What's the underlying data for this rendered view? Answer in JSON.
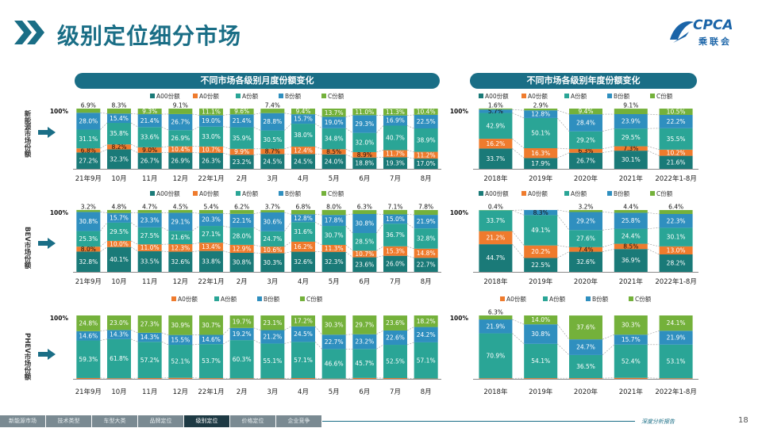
{
  "page": {
    "title": "级别定位细分市场",
    "number": "18",
    "footer_note": "深度分析报告"
  },
  "logo": {
    "text": "CPCA",
    "sub": "乘联会",
    "icon": "cpca-logo-icon"
  },
  "panels": {
    "left_title": "不同市场各级别月度份额变化",
    "right_title": "不同市场各级别年度份额变化"
  },
  "row_labels": [
    "新能源市场份额",
    "BEV市场份额",
    "PHEV市场份额"
  ],
  "nav": [
    {
      "label": "新能源市场",
      "active": false
    },
    {
      "label": "技术类型",
      "active": false
    },
    {
      "label": "车型大类",
      "active": false
    },
    {
      "label": "品牌定位",
      "active": false
    },
    {
      "label": "级别定位",
      "active": true
    },
    {
      "label": "价格定位",
      "active": false
    },
    {
      "label": "企业竞争",
      "active": false
    }
  ],
  "colors": {
    "A00": "#1a7a78",
    "A0": "#ef7b2d",
    "A": "#2aa596",
    "B": "#2f8fbf",
    "C": "#74b13b"
  },
  "chart_data": [
    {
      "type": "bar",
      "stacked": true,
      "y_axis_label": "100%",
      "legend": [
        "A00份额",
        "A0份额",
        "A份额",
        "B份额",
        "C份额"
      ],
      "categories": [
        "21年9月",
        "10月",
        "11月",
        "12月",
        "22年1月",
        "2月",
        "3月",
        "4月",
        "5月",
        "6月",
        "7月",
        "8月"
      ],
      "series": [
        {
          "name": "A00份额",
          "key": "A00",
          "values": [
            27.2,
            32.3,
            26.7,
            26.9,
            26.3,
            23.2,
            24.5,
            24.5,
            24.0,
            18.8,
            19.3,
            17.0
          ]
        },
        {
          "name": "A0份额",
          "key": "A0",
          "values": [
            6.8,
            8.2,
            9.0,
            10.4,
            10.7,
            9.9,
            8.7,
            12.4,
            8.5,
            8.9,
            11.7,
            11.2
          ]
        },
        {
          "name": "A份额",
          "key": "A",
          "values": [
            31.1,
            35.8,
            33.6,
            26.9,
            33.0,
            35.9,
            30.5,
            38.0,
            34.8,
            32.0,
            40.7,
            38.9
          ]
        },
        {
          "name": "B份额",
          "key": "B",
          "values": [
            28.0,
            15.4,
            21.4,
            26.7,
            19.0,
            21.4,
            28.8,
            15.7,
            19.0,
            29.3,
            16.9,
            22.5
          ]
        },
        {
          "name": "C份额",
          "key": "C",
          "values": [
            6.9,
            8.3,
            9.3,
            9.1,
            11.1,
            9.6,
            7.4,
            9.4,
            13.7,
            11.0,
            11.3,
            10.4
          ]
        }
      ]
    },
    {
      "type": "bar",
      "stacked": true,
      "y_axis_label": "100%",
      "legend": [
        "A00份额",
        "A0份额",
        "A份额",
        "B份额",
        "C份额"
      ],
      "categories": [
        "2018年",
        "2019年",
        "2020年",
        "2021年",
        "2022年1-8月"
      ],
      "series": [
        {
          "name": "A00份额",
          "key": "A00",
          "values": [
            33.7,
            17.9,
            26.7,
            30.1,
            21.6
          ]
        },
        {
          "name": "A0份额",
          "key": "A0",
          "values": [
            16.2,
            16.3,
            6.3,
            7.3,
            10.2
          ]
        },
        {
          "name": "A份额",
          "key": "A",
          "values": [
            42.9,
            50.1,
            29.2,
            29.5,
            35.5
          ]
        },
        {
          "name": "B份额",
          "key": "B",
          "values": [
            5.7,
            12.8,
            28.4,
            23.9,
            22.2
          ]
        },
        {
          "name": "C份额",
          "key": "C",
          "values": [
            1.6,
            2.9,
            9.4,
            9.1,
            10.5
          ]
        }
      ]
    },
    {
      "type": "bar",
      "stacked": true,
      "y_axis_label": "100%",
      "legend": [
        "A00份额",
        "A0份额",
        "A份额",
        "B份额",
        "C份额"
      ],
      "categories": [
        "21年9月",
        "10月",
        "11月",
        "12月",
        "22年1月",
        "2月",
        "3月",
        "4月",
        "5月",
        "6月",
        "7月",
        "8月"
      ],
      "series": [
        {
          "name": "A00份额",
          "key": "A00",
          "values": [
            32.8,
            40.1,
            33.5,
            32.6,
            33.8,
            30.8,
            30.3,
            32.6,
            32.3,
            23.6,
            26.0,
            22.7
          ]
        },
        {
          "name": "A0份额",
          "key": "A0",
          "values": [
            8.0,
            10.0,
            11.0,
            12.3,
            13.4,
            12.9,
            10.6,
            16.2,
            11.3,
            10.7,
            15.3,
            14.8
          ]
        },
        {
          "name": "A份额",
          "key": "A",
          "values": [
            25.3,
            29.5,
            27.5,
            21.6,
            27.1,
            28.0,
            24.7,
            31.6,
            30.7,
            28.5,
            36.7,
            32.8
          ]
        },
        {
          "name": "B份额",
          "key": "B",
          "values": [
            30.8,
            15.7,
            23.3,
            29.1,
            20.3,
            22.1,
            30.6,
            12.8,
            17.8,
            30.8,
            15.0,
            21.9
          ]
        },
        {
          "name": "C份额",
          "key": "C",
          "values": [
            3.2,
            4.8,
            4.7,
            4.5,
            5.4,
            6.2,
            3.7,
            6.8,
            8.0,
            6.3,
            7.1,
            7.8
          ]
        }
      ]
    },
    {
      "type": "bar",
      "stacked": true,
      "y_axis_label": "100%",
      "legend": [
        "A00份额",
        "A0份额",
        "A份额",
        "B份额",
        "C份额"
      ],
      "categories": [
        "2018年",
        "2019年",
        "2020年",
        "2021年",
        "2022年1-8月"
      ],
      "series": [
        {
          "name": "A00份额",
          "key": "A00",
          "values": [
            44.7,
            22.5,
            32.6,
            36.9,
            28.2
          ]
        },
        {
          "name": "A0份额",
          "key": "A0",
          "values": [
            21.2,
            20.2,
            7.4,
            8.5,
            13.0
          ]
        },
        {
          "name": "A份额",
          "key": "A",
          "values": [
            33.7,
            49.1,
            27.6,
            24.4,
            30.1
          ]
        },
        {
          "name": "B份额",
          "key": "B",
          "values": [
            0.0,
            8.3,
            29.2,
            25.8,
            22.3
          ]
        },
        {
          "name": "C份额",
          "key": "C",
          "values": [
            0.4,
            0.0,
            3.2,
            4.4,
            6.4
          ]
        }
      ]
    },
    {
      "type": "bar",
      "stacked": true,
      "y_axis_label": "100%",
      "legend": [
        "A0份额",
        "A份额",
        "B份额",
        "C份额"
      ],
      "categories": [
        "21年9月",
        "10月",
        "11月",
        "12月",
        "22年1月",
        "2月",
        "3月",
        "4月",
        "5月",
        "6月",
        "7月",
        "8月"
      ],
      "series": [
        {
          "name": "A0份额",
          "key": "A0",
          "values": [
            1.3,
            0.9,
            1.2,
            1.6,
            1.1,
            0.8,
            0.6,
            1.2,
            0.4,
            1.4,
            1.2,
            0.5
          ]
        },
        {
          "name": "A份额",
          "key": "A",
          "values": [
            59.3,
            61.8,
            57.2,
            52.1,
            53.7,
            60.3,
            55.1,
            57.1,
            46.6,
            45.7,
            52.5,
            57.1
          ]
        },
        {
          "name": "B份额",
          "key": "B",
          "values": [
            14.6,
            14.3,
            14.3,
            15.5,
            14.6,
            19.2,
            21.2,
            24.5,
            22.7,
            23.2,
            22.6,
            24.2
          ]
        },
        {
          "name": "C份额",
          "key": "C",
          "values": [
            24.8,
            23.0,
            27.3,
            30.9,
            30.7,
            19.7,
            23.1,
            17.2,
            30.3,
            29.7,
            23.6,
            18.2
          ]
        }
      ]
    },
    {
      "type": "bar",
      "stacked": true,
      "y_axis_label": "100%",
      "legend": [
        "A0份额",
        "A份额",
        "B份额",
        "C份额"
      ],
      "categories": [
        "2018年",
        "2019年",
        "2020年",
        "2021年",
        "2022年1-8月"
      ],
      "series": [
        {
          "name": "A0份额",
          "key": "A0",
          "values": [
            0.9,
            1.1,
            1.1,
            1.6,
            0.9
          ]
        },
        {
          "name": "A份额",
          "key": "A",
          "values": [
            70.9,
            54.1,
            36.5,
            52.4,
            53.1
          ]
        },
        {
          "name": "B份额",
          "key": "B",
          "values": [
            21.9,
            30.8,
            24.7,
            15.7,
            21.9
          ]
        },
        {
          "name": "C份额",
          "key": "C",
          "values": [
            6.3,
            14.0,
            37.6,
            30.3,
            24.1
          ]
        }
      ]
    }
  ]
}
